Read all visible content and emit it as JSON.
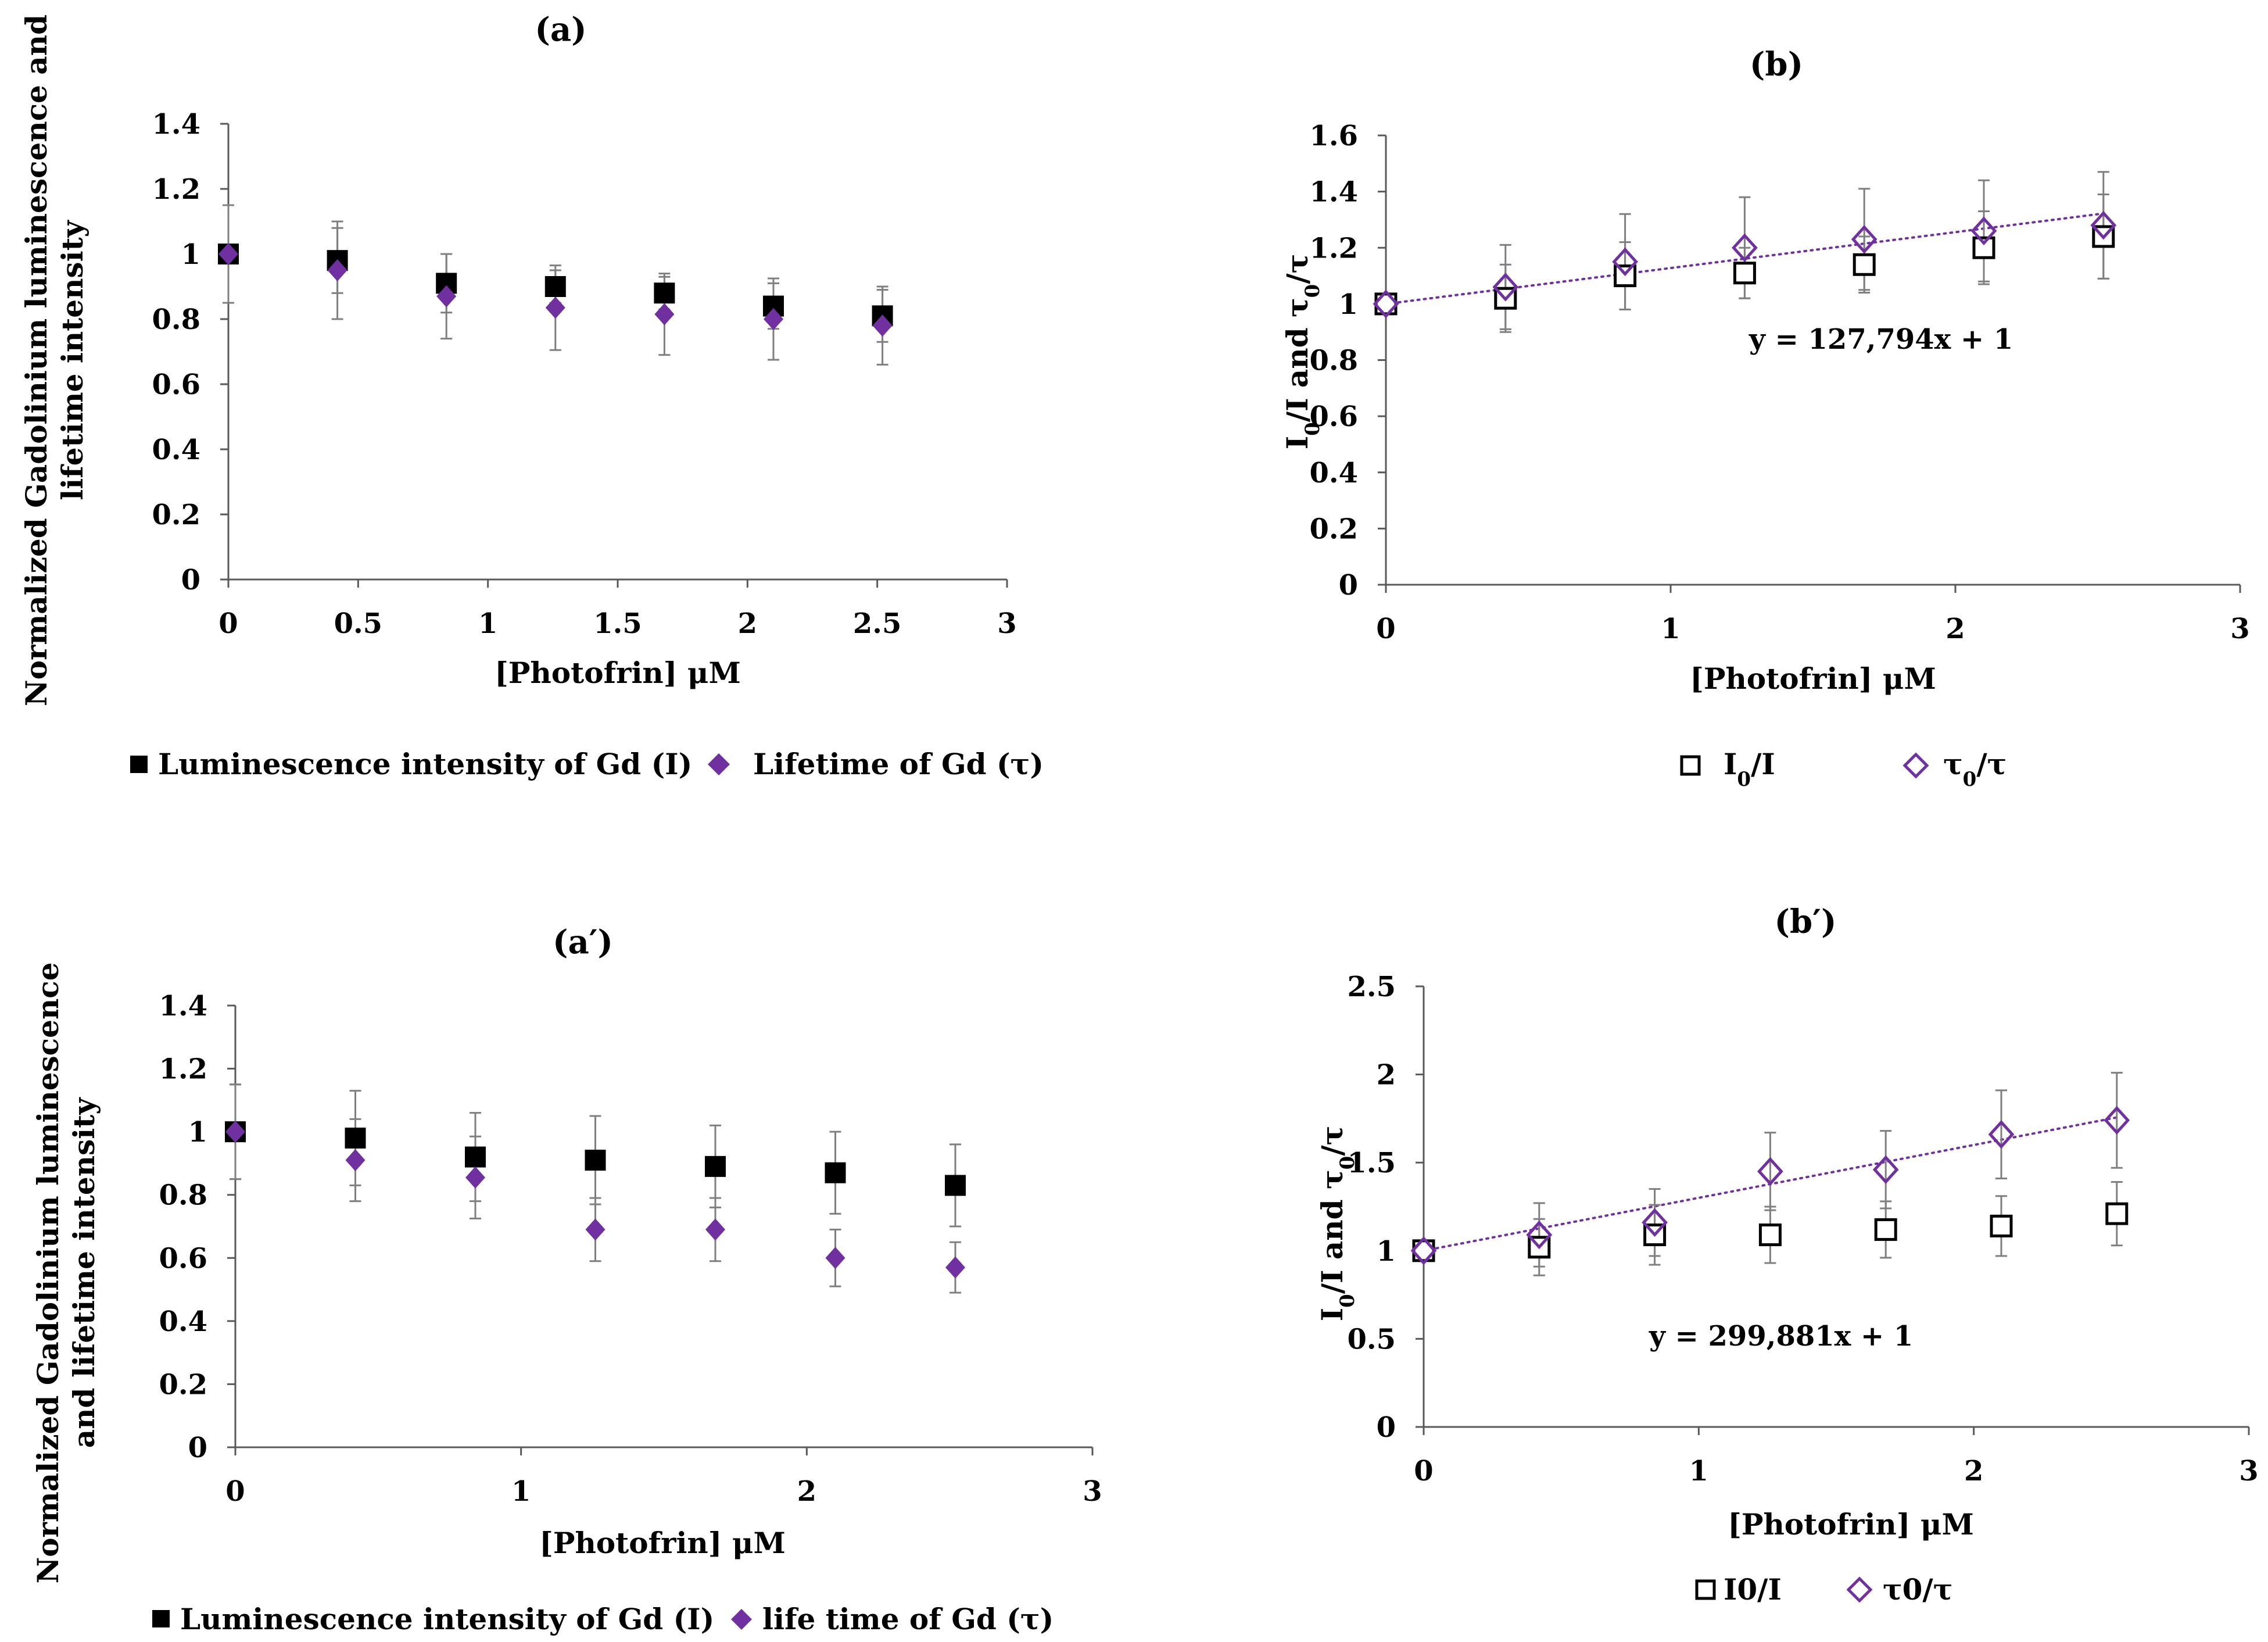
{
  "colors": {
    "black": "#000000",
    "purple": "#7030a0",
    "axis": "#595959",
    "error": "#7f7f7f"
  },
  "chart_data": [
    {
      "id": "a",
      "type": "scatter",
      "title": "(a)",
      "xlabel": "[Photofrin] μM",
      "ylabel_lines": [
        "Normalized Gadolinium luminescence and",
        "lifetime intensity"
      ],
      "xlim": [
        0,
        3
      ],
      "ylim": [
        0,
        1.4
      ],
      "xticks": [
        "0",
        "0.5",
        "1",
        "1.5",
        "2",
        "2.5",
        "3"
      ],
      "yticks": [
        "0",
        "0.2",
        "0.4",
        "0.6",
        "0.8",
        "1",
        "1.2",
        "1.4"
      ],
      "series": [
        {
          "name": "Luminescence intensity of Gd (I)",
          "marker": "square-filled",
          "color": "#000000",
          "x": [
            0,
            0.42,
            0.84,
            1.26,
            1.68,
            2.1,
            2.52
          ],
          "y": [
            1.0,
            0.98,
            0.91,
            0.9,
            0.88,
            0.84,
            0.81
          ],
          "err": [
            0.15,
            0.1,
            0.09,
            0.05,
            0.05,
            0.07,
            0.08
          ]
        },
        {
          "name": "Lifetime of Gd (τ)",
          "marker": "diamond-filled",
          "color": "#7030a0",
          "x": [
            0,
            0.42,
            0.84,
            1.26,
            1.68,
            2.1,
            2.52
          ],
          "y": [
            1.0,
            0.95,
            0.87,
            0.835,
            0.815,
            0.8,
            0.78
          ],
          "err": [
            0.15,
            0.15,
            0.13,
            0.13,
            0.125,
            0.125,
            0.12
          ]
        }
      ],
      "legend": [
        "Luminescence intensity of Gd (I)",
        "Lifetime of Gd (τ)"
      ]
    },
    {
      "id": "b",
      "type": "scatter",
      "title": "(b)",
      "xlabel": "[Photofrin] μM",
      "ylabel": {
        "a": "I",
        "b": "0",
        "c": "/I and  ",
        "d": "τ",
        "e": "0",
        "f": "/τ"
      },
      "xlim": [
        0,
        3
      ],
      "ylim": [
        0,
        1.6
      ],
      "xticks": [
        "0",
        "1",
        "2",
        "3"
      ],
      "yticks": [
        "0",
        "0.2",
        "0.4",
        "0.6",
        "0.8",
        "1",
        "1.2",
        "1.4",
        "1.6"
      ],
      "series": [
        {
          "name": "I0/I",
          "marker": "square-open",
          "color": "#000000",
          "x": [
            0,
            0.42,
            0.84,
            1.26,
            1.68,
            2.1,
            2.52
          ],
          "y": [
            1.0,
            1.02,
            1.1,
            1.11,
            1.14,
            1.2,
            1.24
          ],
          "err": [
            0.02,
            0.12,
            0.12,
            0.09,
            0.1,
            0.13,
            0.15
          ]
        },
        {
          "name": "τ0/τ",
          "marker": "diamond-open",
          "color": "#7030a0",
          "x": [
            0,
            0.42,
            0.84,
            1.26,
            1.68,
            2.1,
            2.52
          ],
          "y": [
            1.0,
            1.06,
            1.15,
            1.2,
            1.23,
            1.26,
            1.28
          ],
          "err": [
            0.02,
            0.15,
            0.17,
            0.18,
            0.18,
            0.18,
            0.19
          ]
        }
      ],
      "trendline": {
        "x": [
          0,
          2.52
        ],
        "y": [
          1.0,
          1.322
        ],
        "equation": "y = 127,794x + 1"
      },
      "legend": [
        {
          "a": "I",
          "b": "0",
          "c": "/I"
        },
        {
          "a": "τ",
          "b": "0",
          "c": "/τ"
        }
      ]
    },
    {
      "id": "a-prime",
      "type": "scatter",
      "title": "(a′)",
      "xlabel": "[Photofrin] μM",
      "ylabel_lines": [
        "Normalized Gadolinium luminescence",
        "and lifetime intensity"
      ],
      "xlim": [
        0,
        3
      ],
      "ylim": [
        0,
        1.4
      ],
      "xticks": [
        "0",
        "1",
        "2",
        "3"
      ],
      "yticks": [
        "0",
        "0.2",
        "0.4",
        "0.6",
        "0.8",
        "1",
        "1.2",
        "1.4"
      ],
      "series": [
        {
          "name": "Luminescence intensity of Gd (I)",
          "marker": "square-filled",
          "color": "#000000",
          "x": [
            0,
            0.42,
            0.84,
            1.26,
            1.68,
            2.1,
            2.52
          ],
          "y": [
            1.0,
            0.98,
            0.92,
            0.91,
            0.89,
            0.87,
            0.83
          ],
          "err": [
            0.15,
            0.15,
            0.14,
            0.14,
            0.13,
            0.13,
            0.13
          ]
        },
        {
          "name": "life time of Gd (τ)",
          "marker": "diamond-filled",
          "color": "#7030a0",
          "x": [
            0,
            0.42,
            0.84,
            1.26,
            1.68,
            2.1,
            2.52
          ],
          "y": [
            1.0,
            0.91,
            0.855,
            0.69,
            0.69,
            0.6,
            0.57
          ],
          "err": [
            0.15,
            0.13,
            0.13,
            0.1,
            0.1,
            0.09,
            0.08
          ]
        }
      ],
      "legend": [
        "Luminescence intensity of Gd (I)",
        "life time of Gd (τ)"
      ]
    },
    {
      "id": "b-prime",
      "type": "scatter",
      "title": "(b′)",
      "xlabel": "[Photofrin] μM",
      "ylabel": {
        "a": "I",
        "b": "0",
        "c": "/I and  ",
        "d": "τ",
        "e": "0",
        "f": "/τ"
      },
      "xlim": [
        0,
        3
      ],
      "ylim": [
        0,
        2.5
      ],
      "xticks": [
        "0",
        "1",
        "2",
        "3"
      ],
      "yticks": [
        "0",
        "0.5",
        "1",
        "1.5",
        "2",
        "2.5"
      ],
      "series": [
        {
          "name": "I0/I",
          "marker": "square-open",
          "color": "#000000",
          "x": [
            0,
            0.42,
            0.84,
            1.26,
            1.68,
            2.1,
            2.52
          ],
          "y": [
            1.0,
            1.02,
            1.09,
            1.09,
            1.12,
            1.14,
            1.21
          ],
          "err": [
            0.05,
            0.16,
            0.17,
            0.16,
            0.16,
            0.17,
            0.18
          ]
        },
        {
          "name": "τ0/τ",
          "marker": "diamond-open",
          "color": "#7030a0",
          "x": [
            0,
            0.42,
            0.84,
            1.26,
            1.68,
            2.1,
            2.52
          ],
          "y": [
            1.0,
            1.09,
            1.16,
            1.45,
            1.46,
            1.66,
            1.74
          ],
          "err": [
            0.05,
            0.18,
            0.19,
            0.22,
            0.22,
            0.25,
            0.27
          ]
        }
      ],
      "trendline": {
        "x": [
          0,
          2.52
        ],
        "y": [
          1.0,
          1.756
        ],
        "equation": "y = 299,881x + 1"
      },
      "legend": [
        "I0/I",
        "τ0/τ"
      ]
    }
  ]
}
